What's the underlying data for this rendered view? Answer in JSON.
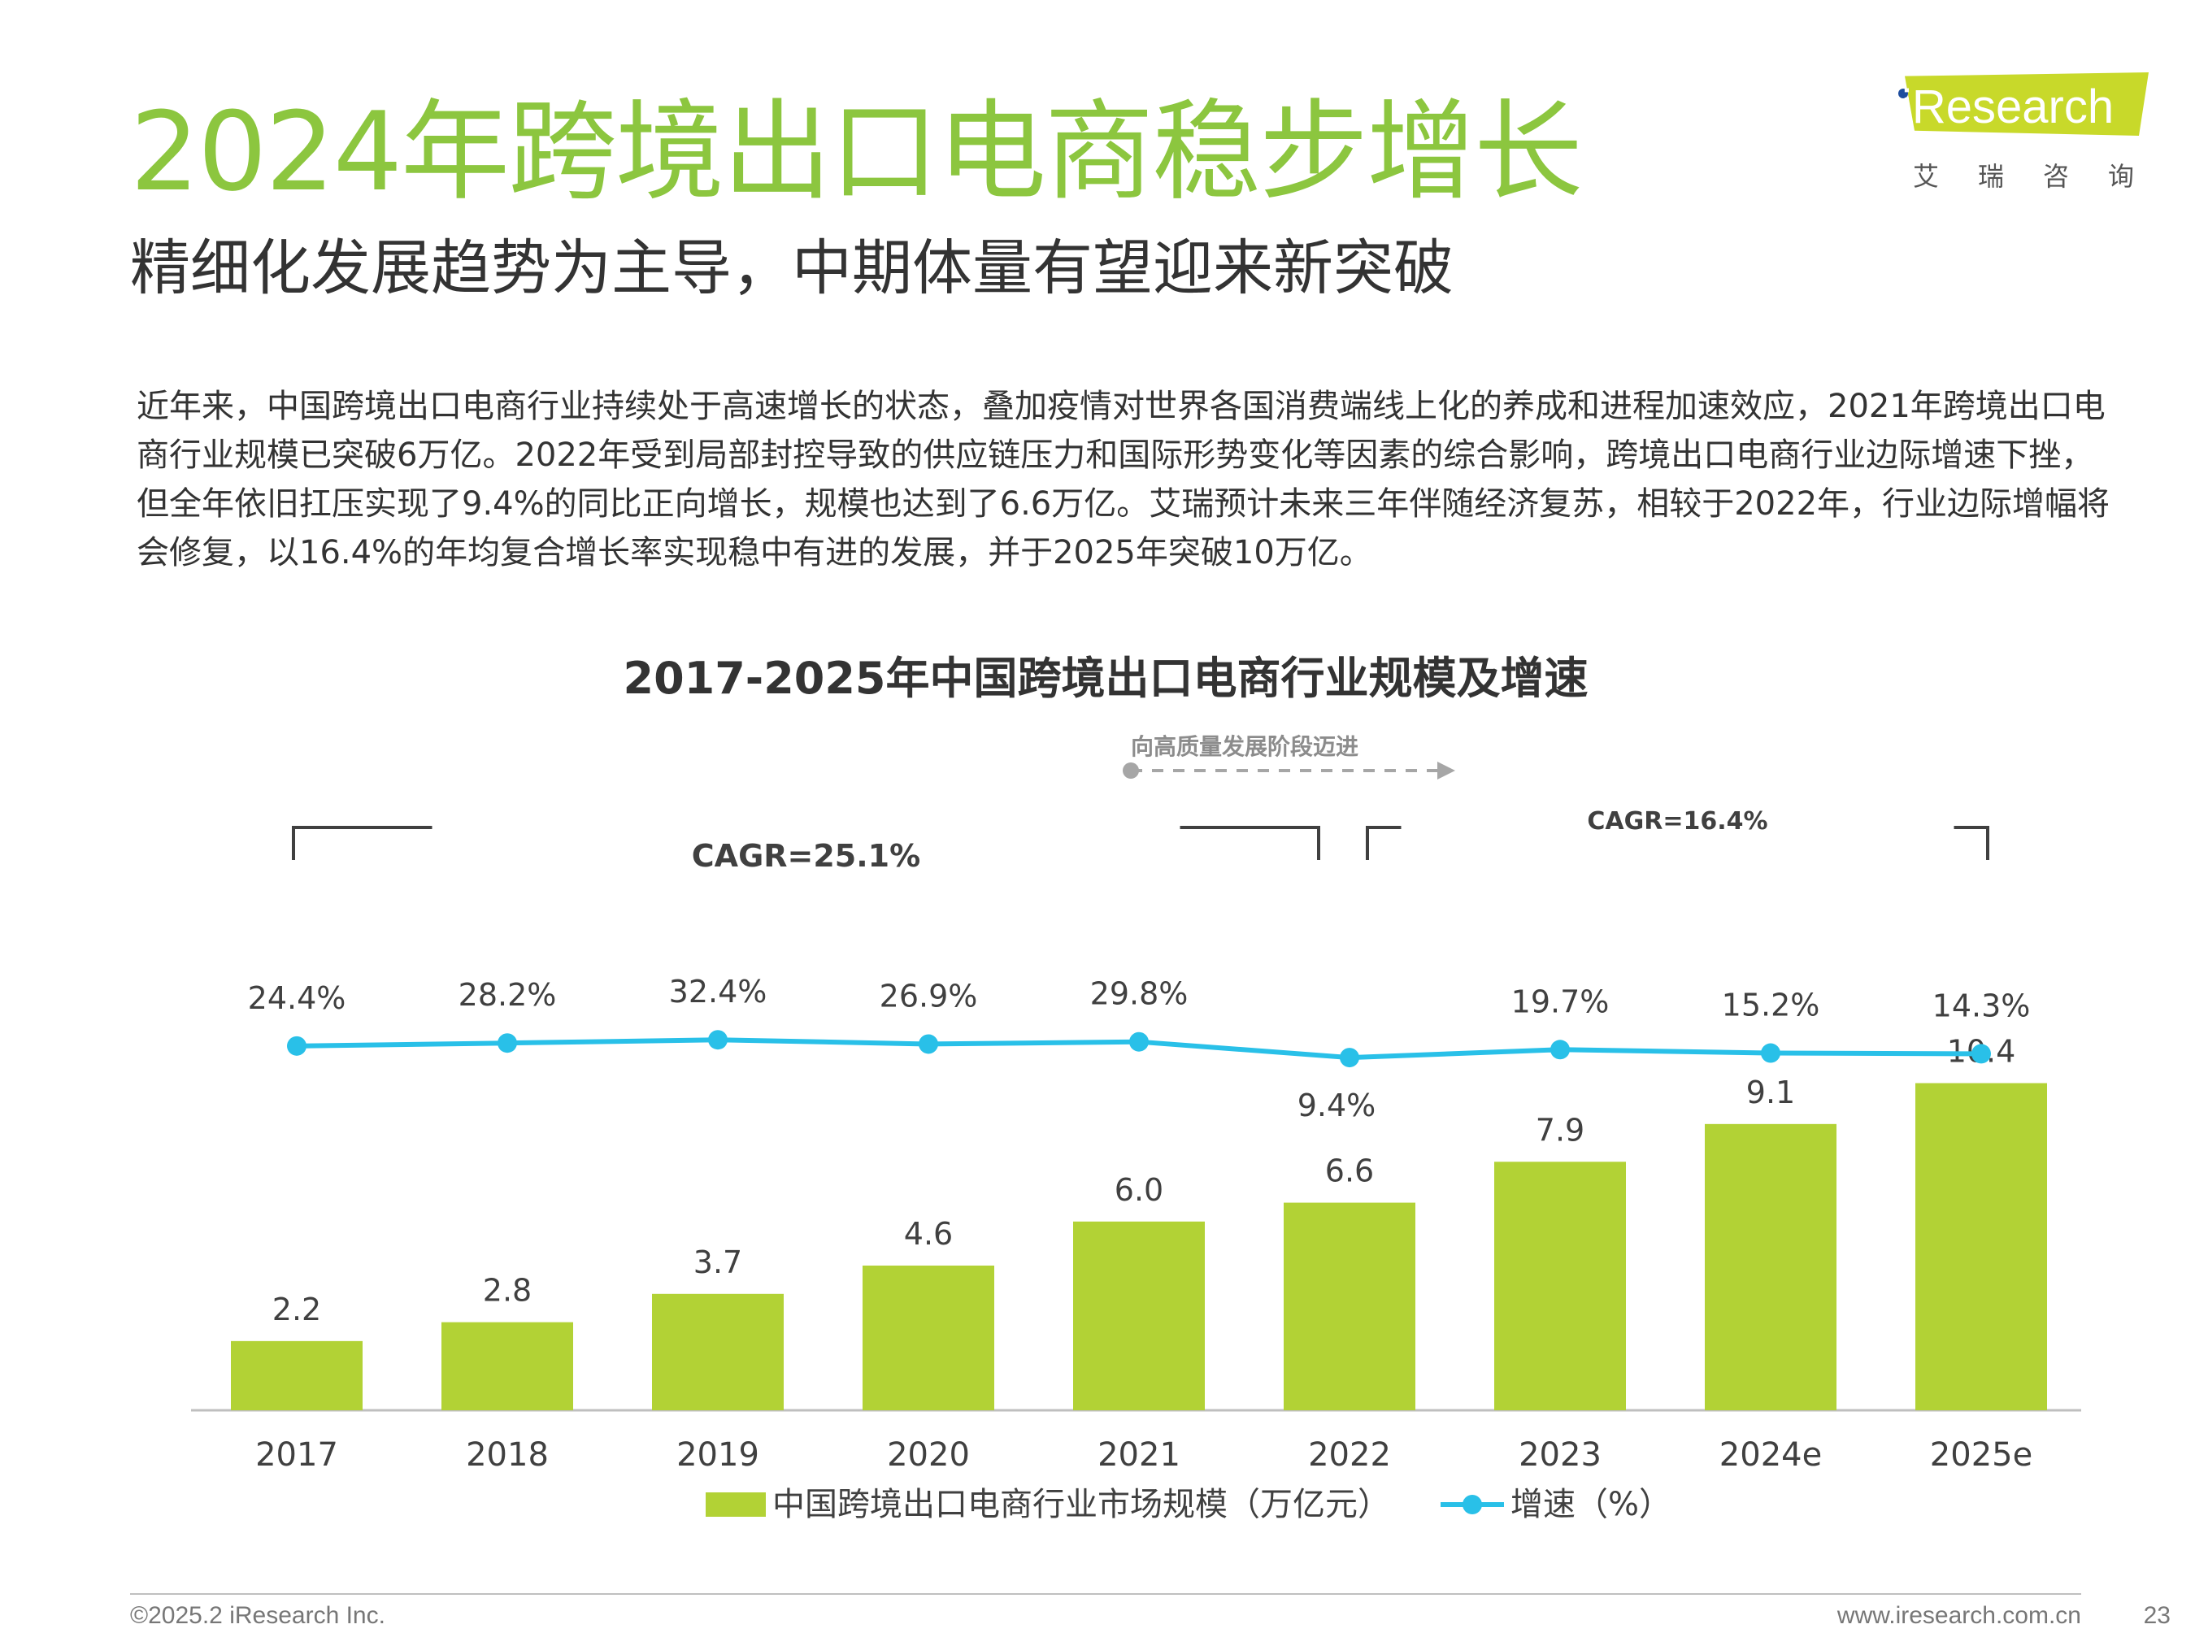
{
  "header": {
    "title": "2024年跨境出口电商稳步增长",
    "subtitle": "精细化发展趋势为主导，中期体量有望迎来新突破"
  },
  "logo": {
    "text": "iResearch",
    "subtext": "艾瑞咨询",
    "accent_color": "#c8d92a",
    "dot_color": "#1f4e9e"
  },
  "intro": "近年来，中国跨境出口电商行业持续处于高速增长的状态，叠加疫情对世界各国消费端线上化的养成和进程加速效应，2021年跨境出口电商行业规模已突破6万亿。2022年受到局部封控导致的供应链压力和国际形势变化等因素的综合影响，跨境出口电商行业边际增速下挫，但全年依旧扛压实现了9.4%的同比正向增长，规模也达到了6.6万亿。艾瑞预计未来三年伴随经济复苏，相较于2022年，行业边际增幅将会修复，以16.4%的年均复合增长率实现稳中有进的发展，并于2025年突破10万亿。",
  "chart_data": {
    "type": "bar",
    "title": "2017-2025年中国跨境出口电商行业规模及增速",
    "categories": [
      "2017",
      "2018",
      "2019",
      "2020",
      "2021",
      "2022",
      "2023",
      "2024e",
      "2025e"
    ],
    "series": [
      {
        "name": "中国跨境出口电商行业市场规模（万亿元）",
        "type": "bar",
        "color": "#b2d235",
        "values": [
          2.2,
          2.8,
          3.7,
          4.6,
          6.0,
          6.6,
          7.9,
          9.1,
          10.4
        ],
        "labels": [
          "2.2",
          "2.8",
          "3.7",
          "4.6",
          "6.0",
          "6.6",
          "7.9",
          "9.1",
          "10.4"
        ]
      },
      {
        "name": "增速（%）",
        "type": "line",
        "color": "#29c0e8",
        "values": [
          24.4,
          28.2,
          32.4,
          26.9,
          29.8,
          9.4,
          19.7,
          15.2,
          14.3
        ],
        "labels": [
          "24.4%",
          "28.2%",
          "32.4%",
          "26.9%",
          "29.8%",
          "9.4%",
          "19.7%",
          "15.2%",
          "14.3%"
        ]
      }
    ],
    "annotations": {
      "trend_label": "向高质量发展阶段迈进",
      "cagr_1": {
        "label": "CAGR=25.1%",
        "from": "2017",
        "to": "2022"
      },
      "cagr_2": {
        "label": "CAGR=16.4%",
        "from": "2022",
        "to": "2025e"
      }
    },
    "legend_position": "bottom",
    "grid": false
  },
  "footer": {
    "copyright": "©2025.2 iResearch Inc.",
    "website": "www.iresearch.com.cn",
    "page_number": "23"
  }
}
